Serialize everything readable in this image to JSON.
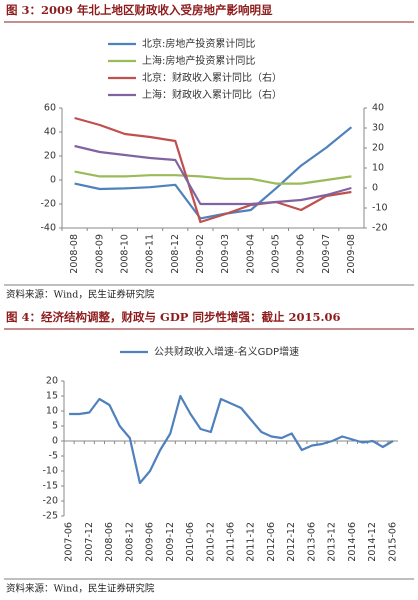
{
  "chart_data": [
    {
      "type": "line",
      "title": "图 3：2009 年北上地区财政收入受房地产影响明显",
      "source": "资料来源：Wind，民生证券研究院",
      "categories": [
        "2008-08",
        "2008-09",
        "2008-10",
        "2008-11",
        "2008-12",
        "2009-02",
        "2009-03",
        "2009-04",
        "2009-05",
        "2009-06",
        "2009-07",
        "2009-08"
      ],
      "series": [
        {
          "name": "北京:房地产投资累计同比",
          "color": "#4f81bd",
          "values": [
            -3,
            -7.5,
            -7,
            -6,
            -4,
            -32,
            -28,
            -25,
            -7,
            12,
            27,
            44
          ]
        },
        {
          "name": "上海:房地产投资累计同比",
          "color": "#9bbb59",
          "values": [
            7,
            3,
            3,
            4,
            4,
            3,
            1,
            1,
            -3,
            -3,
            0,
            3
          ]
        },
        {
          "name": "北京：财政收入累计同比（右）",
          "color": "#c0504d",
          "axis": "y2",
          "values": [
            35,
            31.5,
            27,
            25.5,
            23.5,
            -17,
            -13,
            -8.5,
            -7,
            -11,
            -4,
            -2
          ]
        },
        {
          "name": "上海：财政收入累计同比（右）",
          "color": "#8064a2",
          "axis": "y2",
          "values": [
            21,
            18,
            16.5,
            15,
            14,
            -8,
            -8,
            -8,
            -7,
            -6,
            -3.5,
            0
          ]
        }
      ],
      "ylim": [
        -40,
        60
      ],
      "yticks": [
        -40,
        -20,
        0,
        20,
        40,
        60
      ],
      "y2lim": [
        -20,
        40
      ],
      "y2ticks": [
        -20,
        -10,
        0,
        10,
        20,
        30,
        40
      ],
      "legend": "top-left",
      "grid": false
    },
    {
      "type": "line",
      "title": "图 4：经济结构调整，财政与 GDP 同步性增强：截止 2015.06",
      "source": "资料来源：Wind，民生证券研究院",
      "categories": [
        "2007-06",
        null,
        "2007-12",
        null,
        "2008-06",
        null,
        "2008-12",
        null,
        "2009-06",
        null,
        "2009-12",
        null,
        "2010-06",
        null,
        "2010-12",
        null,
        "2011-06",
        null,
        "2011-12",
        null,
        "2012-06",
        null,
        "2012-12",
        null,
        "2013-06",
        null,
        "2013-12",
        null,
        "2014-06",
        null,
        "2014-12",
        null,
        "2015-06"
      ],
      "series": [
        {
          "name": "公共财政收入增速-名义GDP增速",
          "color": "#4f81bd",
          "values": [
            9,
            9,
            9.5,
            14,
            12,
            5,
            1,
            -14,
            -10,
            -3,
            2.5,
            15,
            9,
            4,
            3,
            14,
            12.5,
            11,
            7,
            3,
            1.5,
            1,
            2.5,
            -3,
            -1.5,
            -1,
            0,
            1.5,
            0.5,
            -0.5,
            0,
            -2,
            0
          ]
        }
      ],
      "ylim": [
        -25,
        20
      ],
      "yticks": [
        -25,
        -20,
        -15,
        -10,
        -5,
        0,
        5,
        10,
        15,
        20
      ],
      "legend": "top",
      "grid": false
    }
  ]
}
